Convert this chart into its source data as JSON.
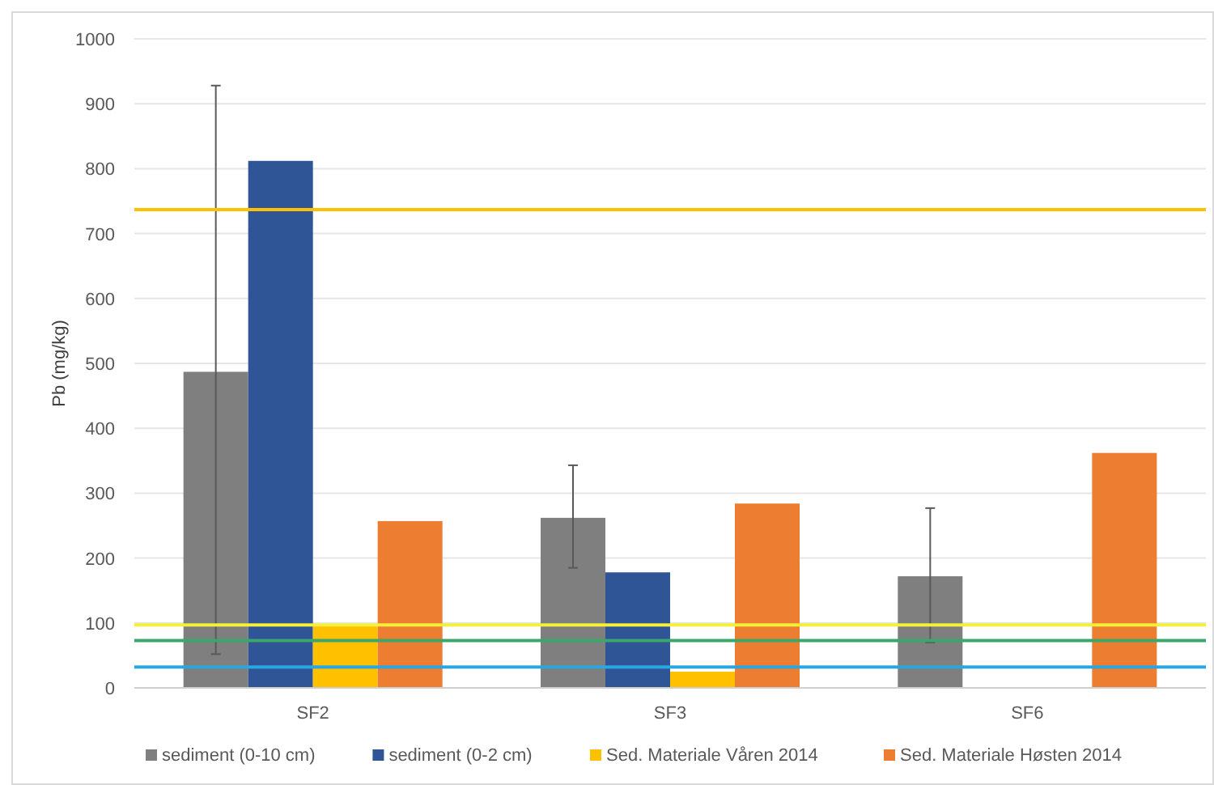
{
  "chart_data": {
    "type": "bar",
    "ylabel": "Pb (mg/kg)",
    "categories": [
      "SF2",
      "SF3",
      "SF6"
    ],
    "series": [
      {
        "name": "sediment (0-10 cm)",
        "color": "#7f7f7f",
        "values": [
          487,
          262,
          172
        ],
        "errors": [
          [
            52,
            928
          ],
          [
            185,
            343
          ],
          [
            70,
            277
          ]
        ]
      },
      {
        "name": "sediment (0-2 cm)",
        "color": "#2f5597",
        "values": [
          812,
          178,
          null
        ]
      },
      {
        "name": "Sed. Materiale Våren 2014",
        "color": "#ffc000",
        "values": [
          95,
          25,
          null
        ]
      },
      {
        "name": "Sed. Materiale Høsten 2014",
        "color": "#ed7d31",
        "values": [
          257,
          284,
          362
        ]
      }
    ],
    "ylim": [
      0,
      1000
    ],
    "yticks": [
      0,
      100,
      200,
      300,
      400,
      500,
      600,
      700,
      800,
      900,
      1000
    ],
    "grid": "y",
    "legend": "bottom",
    "ref_lines": [
      {
        "axis": "y",
        "value": 737,
        "color": "#ffc000"
      },
      {
        "axis": "y",
        "value": 97,
        "color": "#f5ef3a"
      },
      {
        "axis": "y",
        "value": 73,
        "color": "#3da66b"
      },
      {
        "axis": "y",
        "value": 32,
        "color": "#2aa7e0"
      }
    ]
  }
}
